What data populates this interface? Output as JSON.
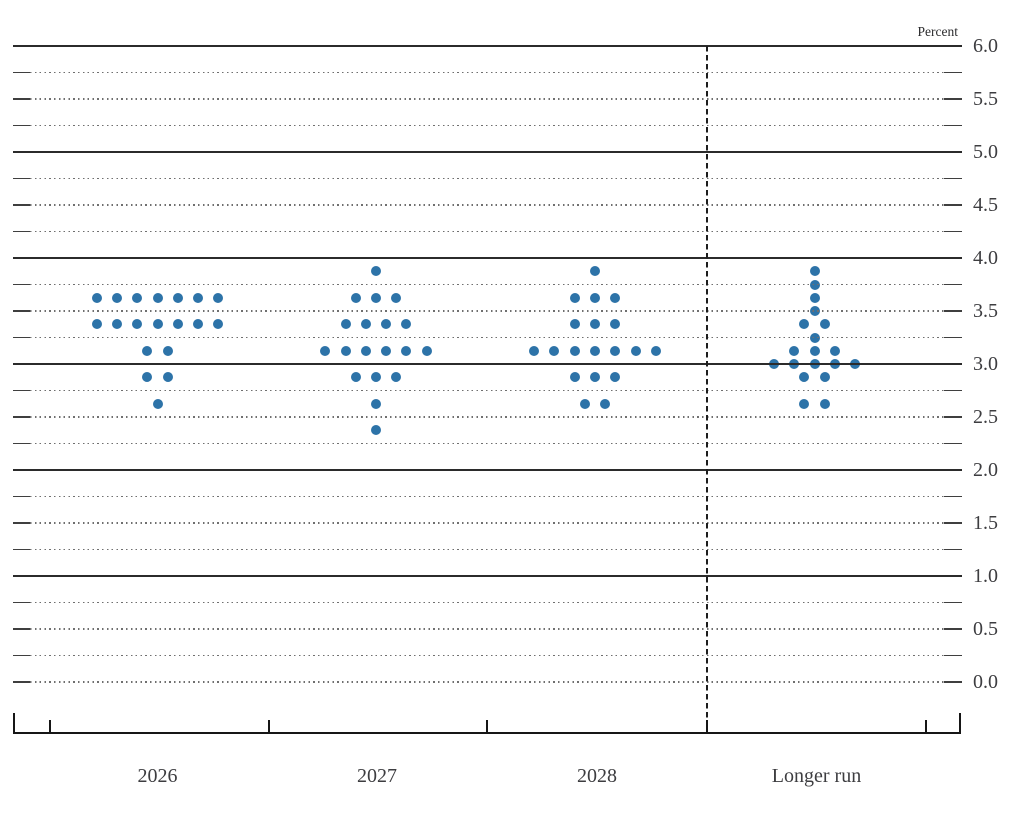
{
  "chart_data": {
    "type": "scatter",
    "variant": "fomc-dot-plot",
    "title": "",
    "xlabel": "",
    "ylabel": "Percent",
    "ylim": [
      0.0,
      6.0
    ],
    "minor_grid_step": 0.25,
    "grid": "on",
    "legend_position": "none",
    "solid_grid_values": [
      6.0,
      5.0,
      4.0,
      3.0,
      2.0,
      1.0
    ],
    "ytick_values": [
      6.0,
      5.5,
      5.0,
      4.5,
      4.0,
      3.5,
      3.0,
      2.5,
      2.0,
      1.5,
      1.0,
      0.5,
      0.0
    ],
    "ytick_labels": [
      "6.0",
      "5.5",
      "5.0",
      "4.5",
      "4.0",
      "3.5",
      "3.0",
      "2.5",
      "2.0",
      "1.5",
      "1.0",
      "0.5",
      "0.0"
    ],
    "categories": [
      "2026",
      "2027",
      "2028",
      "Longer run"
    ],
    "separator_before_category": "Longer run",
    "series": [
      {
        "name": "2026",
        "dots": [
          {
            "rate": 3.625,
            "count": 7
          },
          {
            "rate": 3.375,
            "count": 7
          },
          {
            "rate": 3.125,
            "count": 2
          },
          {
            "rate": 2.875,
            "count": 2
          },
          {
            "rate": 2.625,
            "count": 1
          }
        ]
      },
      {
        "name": "2027",
        "dots": [
          {
            "rate": 3.875,
            "count": 1
          },
          {
            "rate": 3.625,
            "count": 3
          },
          {
            "rate": 3.375,
            "count": 4
          },
          {
            "rate": 3.125,
            "count": 6
          },
          {
            "rate": 2.875,
            "count": 3
          },
          {
            "rate": 2.625,
            "count": 1
          },
          {
            "rate": 2.375,
            "count": 1
          }
        ]
      },
      {
        "name": "2028",
        "dots": [
          {
            "rate": 3.875,
            "count": 1
          },
          {
            "rate": 3.625,
            "count": 3
          },
          {
            "rate": 3.375,
            "count": 3
          },
          {
            "rate": 3.125,
            "count": 7
          },
          {
            "rate": 2.875,
            "count": 3
          },
          {
            "rate": 2.625,
            "count": 2
          }
        ]
      },
      {
        "name": "Longer run",
        "dots": [
          {
            "rate": 3.875,
            "count": 1
          },
          {
            "rate": 3.75,
            "count": 1
          },
          {
            "rate": 3.625,
            "count": 1
          },
          {
            "rate": 3.5,
            "count": 1
          },
          {
            "rate": 3.375,
            "count": 2
          },
          {
            "rate": 3.25,
            "count": 1
          },
          {
            "rate": 3.125,
            "count": 3
          },
          {
            "rate": 3.0,
            "count": 5
          },
          {
            "rate": 2.875,
            "count": 2
          },
          {
            "rate": 2.625,
            "count": 2
          }
        ]
      }
    ],
    "colors": {
      "dot": "#2d73a8",
      "solid_gridline": "#2b2b2b",
      "dotted_gridline": "#6f6f6f",
      "axis": "#161616",
      "text": "#3d3d40",
      "background": "#ffffff"
    }
  }
}
